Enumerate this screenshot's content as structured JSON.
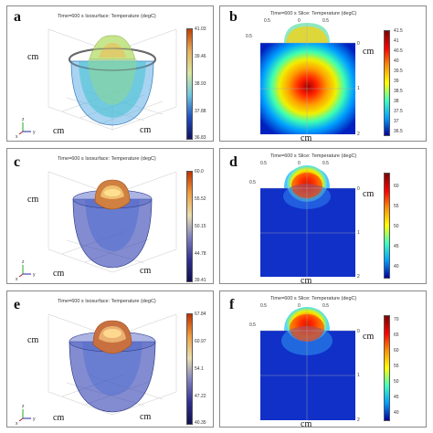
{
  "panels": {
    "a": {
      "label": "a",
      "title": "Time=600 s   Isosurface: Temperature (degC)",
      "ticks": [
        "41.03",
        "39.46",
        "38.93",
        "37.88",
        "36.83"
      ],
      "unit_left": "cm",
      "unit_bottom_l": "cm",
      "unit_bottom_r": "cm"
    },
    "b": {
      "label": "b",
      "title": "Time=600 s   Slice: Temperature (degC)",
      "ticks": [
        "41.5",
        "41",
        "40.5",
        "40",
        "39.5",
        "39",
        "38.5",
        "38",
        "37.5",
        "37",
        "36.5"
      ],
      "unit_right": "cm",
      "unit_bottom": "cm",
      "axis_top": [
        "0.5",
        "0",
        "0.5"
      ],
      "axis_right": [
        "0",
        "1",
        "2"
      ],
      "axis_mid": [
        "0.5"
      ]
    },
    "c": {
      "label": "c",
      "title": "Time=600 s   Isosurface: Temperature (degC)",
      "ticks": [
        "60.0",
        "55.52",
        "50.15",
        "44.78",
        "39.41"
      ],
      "unit_left": "cm",
      "unit_bottom_l": "cm",
      "unit_bottom_r": "cm"
    },
    "d": {
      "label": "d",
      "title": "Time=600 s   Slice: Temperature (degC)",
      "ticks": [
        "60",
        "55",
        "50",
        "45",
        "40"
      ],
      "unit_right": "cm",
      "unit_bottom": "cm",
      "axis_top": [
        "0.5",
        "0",
        "0.5"
      ],
      "axis_right": [
        "0",
        "1",
        "2"
      ],
      "axis_mid": [
        "0.5"
      ]
    },
    "e": {
      "label": "e",
      "title": "Time=600 s   Isosurface: Temperature (degC)",
      "ticks": [
        "67.84",
        "60.97",
        "54.1",
        "47.22",
        "40.35"
      ],
      "unit_left": "cm",
      "unit_bottom_l": "cm",
      "unit_bottom_r": "cm"
    },
    "f": {
      "label": "f",
      "title": "Time=600 s   Slice: Temperature (degC)",
      "ticks": [
        "70",
        "65",
        "60",
        "55",
        "50",
        "45",
        "40"
      ],
      "unit_right": "cm",
      "unit_bottom": "cm",
      "axis_top": [
        "0.5",
        "0",
        "0.5"
      ],
      "axis_right": [
        "0",
        "1",
        "2"
      ],
      "axis_mid": [
        "0.5"
      ]
    }
  },
  "axes3d": {
    "x": "x",
    "y": "y",
    "z": "z"
  },
  "colors": {
    "hot": "#b00000",
    "warm": "#ffff00",
    "cool": "#00c8ff",
    "cold": "#1030c0",
    "deep": "#000090"
  }
}
